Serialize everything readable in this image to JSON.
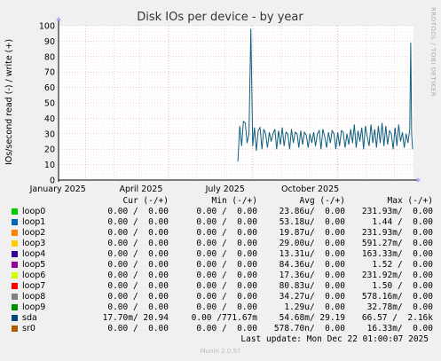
{
  "chart_data": {
    "type": "line",
    "title": "Disk IOs per device - by year",
    "ylabel": "IOs/second read (-) / write (+)",
    "side_label": "RRDTOOL / TOBI OETIKER",
    "ylim": [
      0,
      100
    ],
    "y_ticks": [
      0,
      10,
      20,
      30,
      40,
      50,
      60,
      70,
      80,
      90,
      100
    ],
    "x_ticks": [
      {
        "label": "January 2025",
        "date": "2025-01-01"
      },
      {
        "label": "April 2025",
        "date": "2025-04-01"
      },
      {
        "label": "July 2025",
        "date": "2025-07-01"
      },
      {
        "label": "October 2025",
        "date": "2025-10-01"
      }
    ],
    "x_range": [
      "2024-12-03",
      "2025-12-22"
    ],
    "grid": true,
    "series": [
      {
        "name": "sda",
        "color": "#0F5F7F",
        "x": [
          "2025-06-15",
          "2025-06-17",
          "2025-06-19",
          "2025-06-21",
          "2025-06-23",
          "2025-06-25",
          "2025-06-27",
          "2025-06-29",
          "2025-07-01",
          "2025-07-03",
          "2025-07-05",
          "2025-07-07",
          "2025-07-09",
          "2025-07-11",
          "2025-07-13",
          "2025-07-15",
          "2025-07-17",
          "2025-07-19",
          "2025-07-21",
          "2025-07-23",
          "2025-07-25",
          "2025-07-27",
          "2025-07-29",
          "2025-07-31",
          "2025-08-02",
          "2025-08-04",
          "2025-08-06",
          "2025-08-08",
          "2025-08-10",
          "2025-08-12",
          "2025-08-14",
          "2025-08-16",
          "2025-08-18",
          "2025-08-20",
          "2025-08-22",
          "2025-08-24",
          "2025-08-26",
          "2025-08-28",
          "2025-08-30",
          "2025-09-01",
          "2025-09-03",
          "2025-09-05",
          "2025-09-07",
          "2025-09-09",
          "2025-09-11",
          "2025-09-13",
          "2025-09-15",
          "2025-09-17",
          "2025-09-19",
          "2025-09-21",
          "2025-09-23",
          "2025-09-25",
          "2025-09-27",
          "2025-09-29",
          "2025-10-01",
          "2025-10-03",
          "2025-10-05",
          "2025-10-07",
          "2025-10-09",
          "2025-10-11",
          "2025-10-13",
          "2025-10-15",
          "2025-10-17",
          "2025-10-19",
          "2025-10-21",
          "2025-10-23",
          "2025-10-25",
          "2025-10-27",
          "2025-10-29",
          "2025-10-31",
          "2025-11-02",
          "2025-11-04",
          "2025-11-06",
          "2025-11-08",
          "2025-11-10",
          "2025-11-12",
          "2025-11-14",
          "2025-11-16",
          "2025-11-18",
          "2025-11-20",
          "2025-11-22",
          "2025-11-24",
          "2025-11-26",
          "2025-11-28",
          "2025-11-30",
          "2025-12-02",
          "2025-12-04",
          "2025-12-06",
          "2025-12-08",
          "2025-12-10",
          "2025-12-12",
          "2025-12-14",
          "2025-12-16",
          "2025-12-18",
          "2025-12-19",
          "2025-12-20",
          "2025-12-21"
        ],
        "values": [
          12,
          35,
          22,
          38,
          37,
          24,
          30,
          98,
          22,
          34,
          19,
          32,
          34,
          20,
          33,
          30,
          21,
          31,
          25,
          30,
          33,
          20,
          32,
          23,
          34,
          22,
          31,
          30,
          20,
          33,
          24,
          31,
          30,
          21,
          32,
          23,
          31,
          29,
          21,
          30,
          24,
          31,
          22,
          30,
          32,
          20,
          33,
          28,
          21,
          31,
          24,
          32,
          30,
          20,
          31,
          22,
          32,
          31,
          21,
          30,
          23,
          33,
          24,
          36,
          21,
          32,
          25,
          34,
          20,
          35,
          28,
          22,
          36,
          24,
          33,
          21,
          35,
          24,
          37,
          22,
          35,
          23,
          32,
          30,
          20,
          34,
          22,
          36,
          25,
          31,
          21,
          30,
          24,
          33,
          89,
          30,
          20
        ]
      }
    ]
  },
  "legend": {
    "headers": {
      "cur": "Cur (-/+)",
      "min": "Min (-/+)",
      "avg": "Avg (-/+)",
      "max": "Max (-/+)"
    },
    "rows": [
      {
        "name": "loop0",
        "color": "#00CC00",
        "cur": "0.00 /  0.00",
        "min": "0.00 /  0.00",
        "avg": "23.86u/  0.00",
        "max": "231.93m/  0.00"
      },
      {
        "name": "loop1",
        "color": "#0066B3",
        "cur": "0.00 /  0.00",
        "min": "0.00 /  0.00",
        "avg": "53.18u/  0.00",
        "max": "1.44 /  0.00"
      },
      {
        "name": "loop2",
        "color": "#FF8000",
        "cur": "0.00 /  0.00",
        "min": "0.00 /  0.00",
        "avg": "19.87u/  0.00",
        "max": "231.93m/  0.00"
      },
      {
        "name": "loop3",
        "color": "#FFCC00",
        "cur": "0.00 /  0.00",
        "min": "0.00 /  0.00",
        "avg": "29.00u/  0.00",
        "max": "591.27m/  0.00"
      },
      {
        "name": "loop4",
        "color": "#330099",
        "cur": "0.00 /  0.00",
        "min": "0.00 /  0.00",
        "avg": "13.31u/  0.00",
        "max": "163.33m/  0.00"
      },
      {
        "name": "loop5",
        "color": "#990099",
        "cur": "0.00 /  0.00",
        "min": "0.00 /  0.00",
        "avg": "84.36u/  0.00",
        "max": "1.52 /  0.00"
      },
      {
        "name": "loop6",
        "color": "#CCFF00",
        "cur": "0.00 /  0.00",
        "min": "0.00 /  0.00",
        "avg": "17.36u/  0.00",
        "max": "231.92m/  0.00"
      },
      {
        "name": "loop7",
        "color": "#FF0000",
        "cur": "0.00 /  0.00",
        "min": "0.00 /  0.00",
        "avg": "80.83u/  0.00",
        "max": "1.50 /  0.00"
      },
      {
        "name": "loop8",
        "color": "#808080",
        "cur": "0.00 /  0.00",
        "min": "0.00 /  0.00",
        "avg": "34.27u/  0.00",
        "max": "578.16m/  0.00"
      },
      {
        "name": "loop9",
        "color": "#008F00",
        "cur": "0.00 /  0.00",
        "min": "0.00 /  0.00",
        "avg": "1.29u/  0.00",
        "max": "32.78m/  0.00"
      },
      {
        "name": "sda",
        "color": "#00487D",
        "cur": "17.70m/ 20.94",
        "min": "0.00 /771.67m",
        "avg": "54.68m/ 29.19",
        "max": "66.57 /  2.16k"
      },
      {
        "name": "sr0",
        "color": "#B35A00",
        "cur": "0.00 /  0.00",
        "min": "0.00 /  0.00",
        "avg": "578.70n/  0.00",
        "max": "16.33m/  0.00"
      }
    ]
  },
  "last_update": "Last update: Mon Dec 22 01:00:07 2025",
  "version": "Munin 2.0.57"
}
